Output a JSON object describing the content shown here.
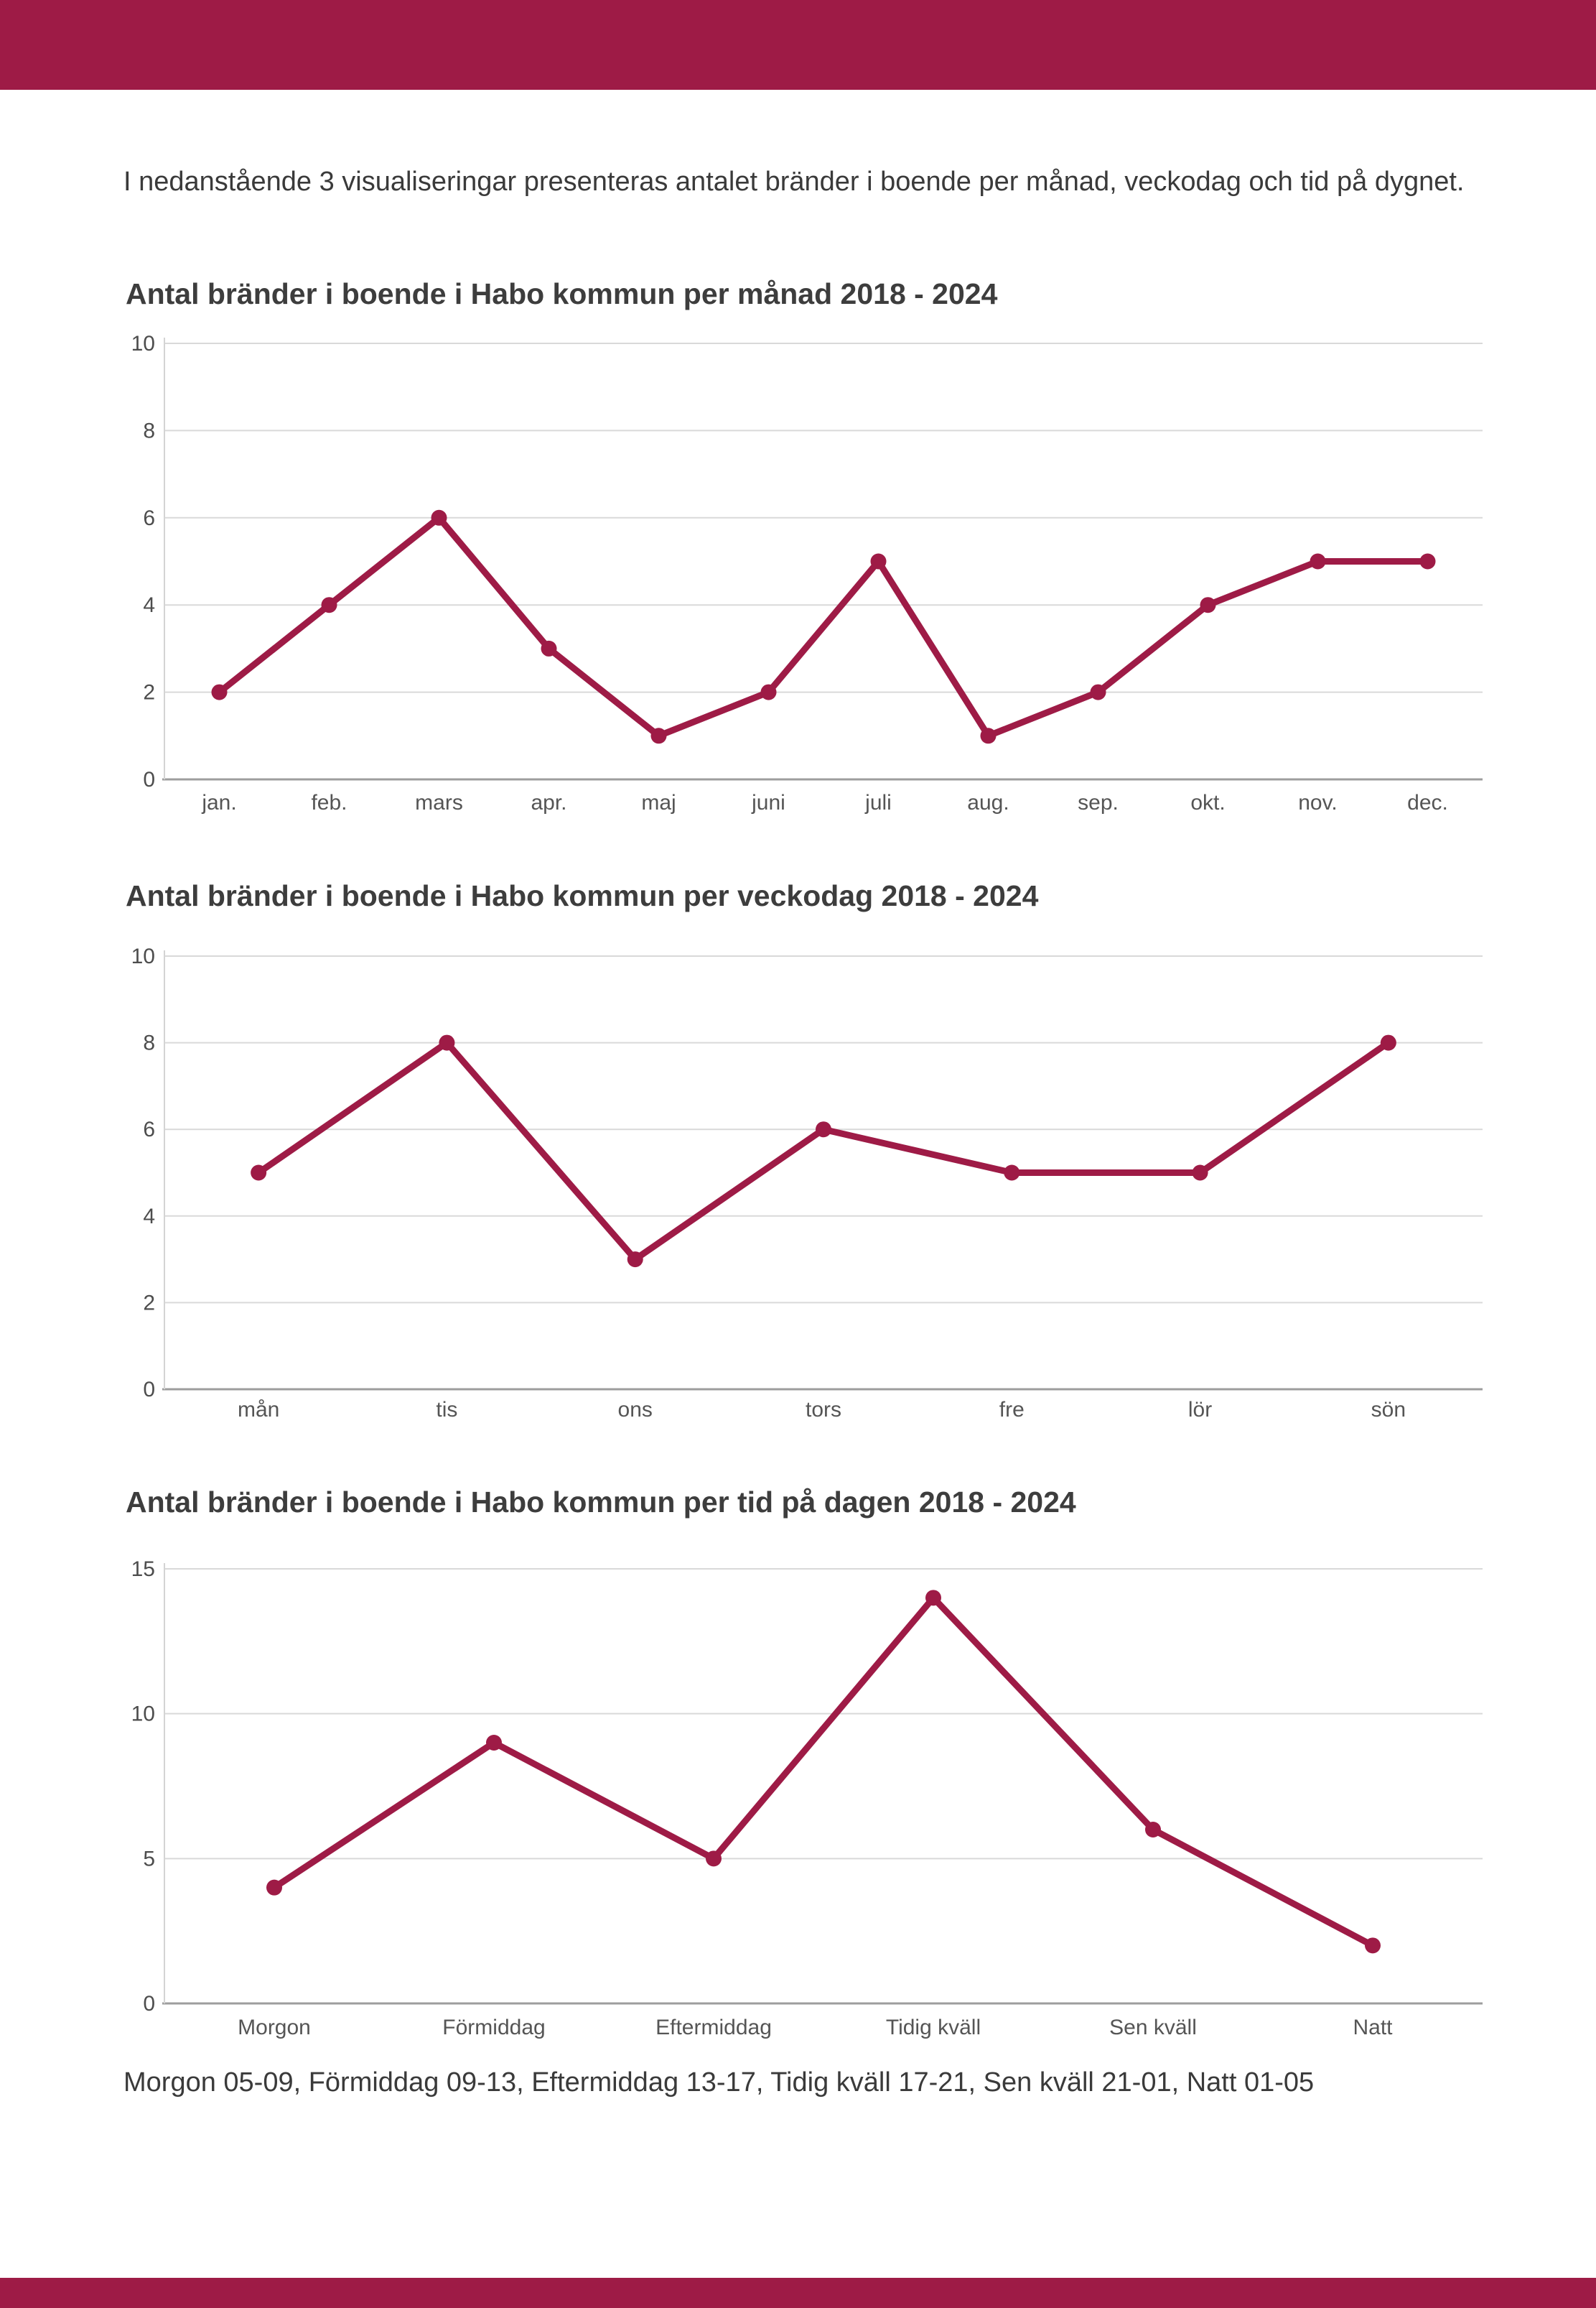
{
  "header": {
    "bar_color": "#9E1B46"
  },
  "intro": {
    "text": "I nedanstående 3 visualiseringar presenteras antalet bränder i boende per månad, veckodag och tid på dygnet."
  },
  "footer": {
    "note": "Morgon 05-09, Förmiddag 09-13, Eftermiddag 13-17, Tidig kväll 17-21, Sen kväll 21-01, Natt 01-05"
  },
  "footer_bar": {
    "color": "#9E1B46"
  },
  "chart_data": [
    {
      "type": "line",
      "title": "Antal bränder i boende i Habo kommun per månad 2018 - 2024",
      "categories": [
        "jan.",
        "feb.",
        "mars",
        "apr.",
        "maj",
        "juni",
        "juli",
        "aug.",
        "sep.",
        "okt.",
        "nov.",
        "dec."
      ],
      "values": [
        2,
        4,
        6,
        3,
        1,
        2,
        5,
        1,
        2,
        4,
        5,
        5
      ],
      "ylim": [
        0,
        10
      ],
      "yticks": [
        0,
        2,
        4,
        6,
        8,
        10
      ],
      "line_color": "#9E1B46",
      "marker": "circle",
      "grid": true,
      "legend": "none",
      "xlabel": "",
      "ylabel": ""
    },
    {
      "type": "line",
      "title": "Antal bränder i boende i Habo kommun per veckodag 2018 - 2024",
      "categories": [
        "mån",
        "tis",
        "ons",
        "tors",
        "fre",
        "lör",
        "sön"
      ],
      "values": [
        5,
        8,
        3,
        6,
        5,
        5,
        8
      ],
      "ylim": [
        0,
        10
      ],
      "yticks": [
        0,
        2,
        4,
        6,
        8,
        10
      ],
      "line_color": "#9E1B46",
      "marker": "circle",
      "grid": true,
      "legend": "none",
      "xlabel": "",
      "ylabel": ""
    },
    {
      "type": "line",
      "title": "Antal bränder i boende i Habo kommun per tid på dagen 2018 - 2024",
      "categories": [
        "Morgon",
        "Förmiddag",
        "Eftermiddag",
        "Tidig kväll",
        "Sen kväll",
        "Natt"
      ],
      "values": [
        4,
        9,
        5,
        14,
        6,
        2
      ],
      "ylim": [
        0,
        15
      ],
      "yticks": [
        0,
        5,
        10,
        15
      ],
      "line_color": "#9E1B46",
      "marker": "circle",
      "grid": true,
      "legend": "none",
      "xlabel": "",
      "ylabel": ""
    }
  ]
}
